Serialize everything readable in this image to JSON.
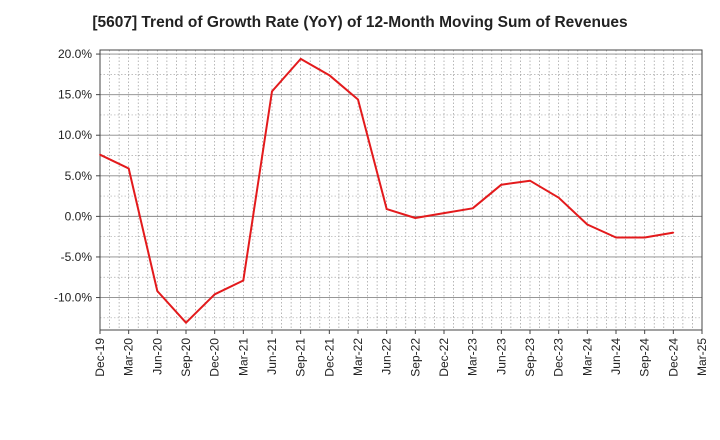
{
  "chart_data": {
    "type": "line",
    "title": "[5607]  Trend of Growth Rate (YoY) of 12-Month Moving Sum of Revenues",
    "xlabel": "",
    "ylabel": "",
    "ylim": [
      -14,
      20.5
    ],
    "grid": true,
    "x_ticks": [
      "Dec-19",
      "Mar-20",
      "Jun-20",
      "Sep-20",
      "Dec-20",
      "Mar-21",
      "Jun-21",
      "Sep-21",
      "Dec-21",
      "Mar-22",
      "Jun-22",
      "Sep-22",
      "Dec-22",
      "Mar-23",
      "Jun-23",
      "Sep-23",
      "Dec-23",
      "Mar-24",
      "Jun-24",
      "Sep-24",
      "Dec-24",
      "Mar-25"
    ],
    "y_ticks": [
      20,
      15,
      10,
      5,
      0,
      -5,
      -10
    ],
    "y_tick_labels": [
      "20.0%",
      "15.0%",
      "10.0%",
      "5.0%",
      "0.0%",
      "-5.0%",
      "-10.0%"
    ],
    "series": [
      {
        "color": "#e31a1c",
        "x": [
          "Dec-19",
          "Mar-20",
          "Jun-20",
          "Sep-20",
          "Dec-20",
          "Mar-21",
          "Jun-21",
          "Sep-21",
          "Dec-21",
          "Mar-22",
          "Jun-22",
          "Sep-22",
          "Dec-22",
          "Mar-23",
          "Jun-23",
          "Sep-23",
          "Dec-23",
          "Mar-24",
          "Jun-24",
          "Sep-24",
          "Dec-24"
        ],
        "values": [
          7.6,
          5.9,
          -9.2,
          -13.1,
          -9.6,
          -7.9,
          15.4,
          19.4,
          17.4,
          14.4,
          0.9,
          -0.2,
          0.4,
          1.0,
          3.9,
          4.4,
          2.3,
          -1.0,
          -2.6,
          -2.6,
          -2.0
        ]
      }
    ]
  }
}
